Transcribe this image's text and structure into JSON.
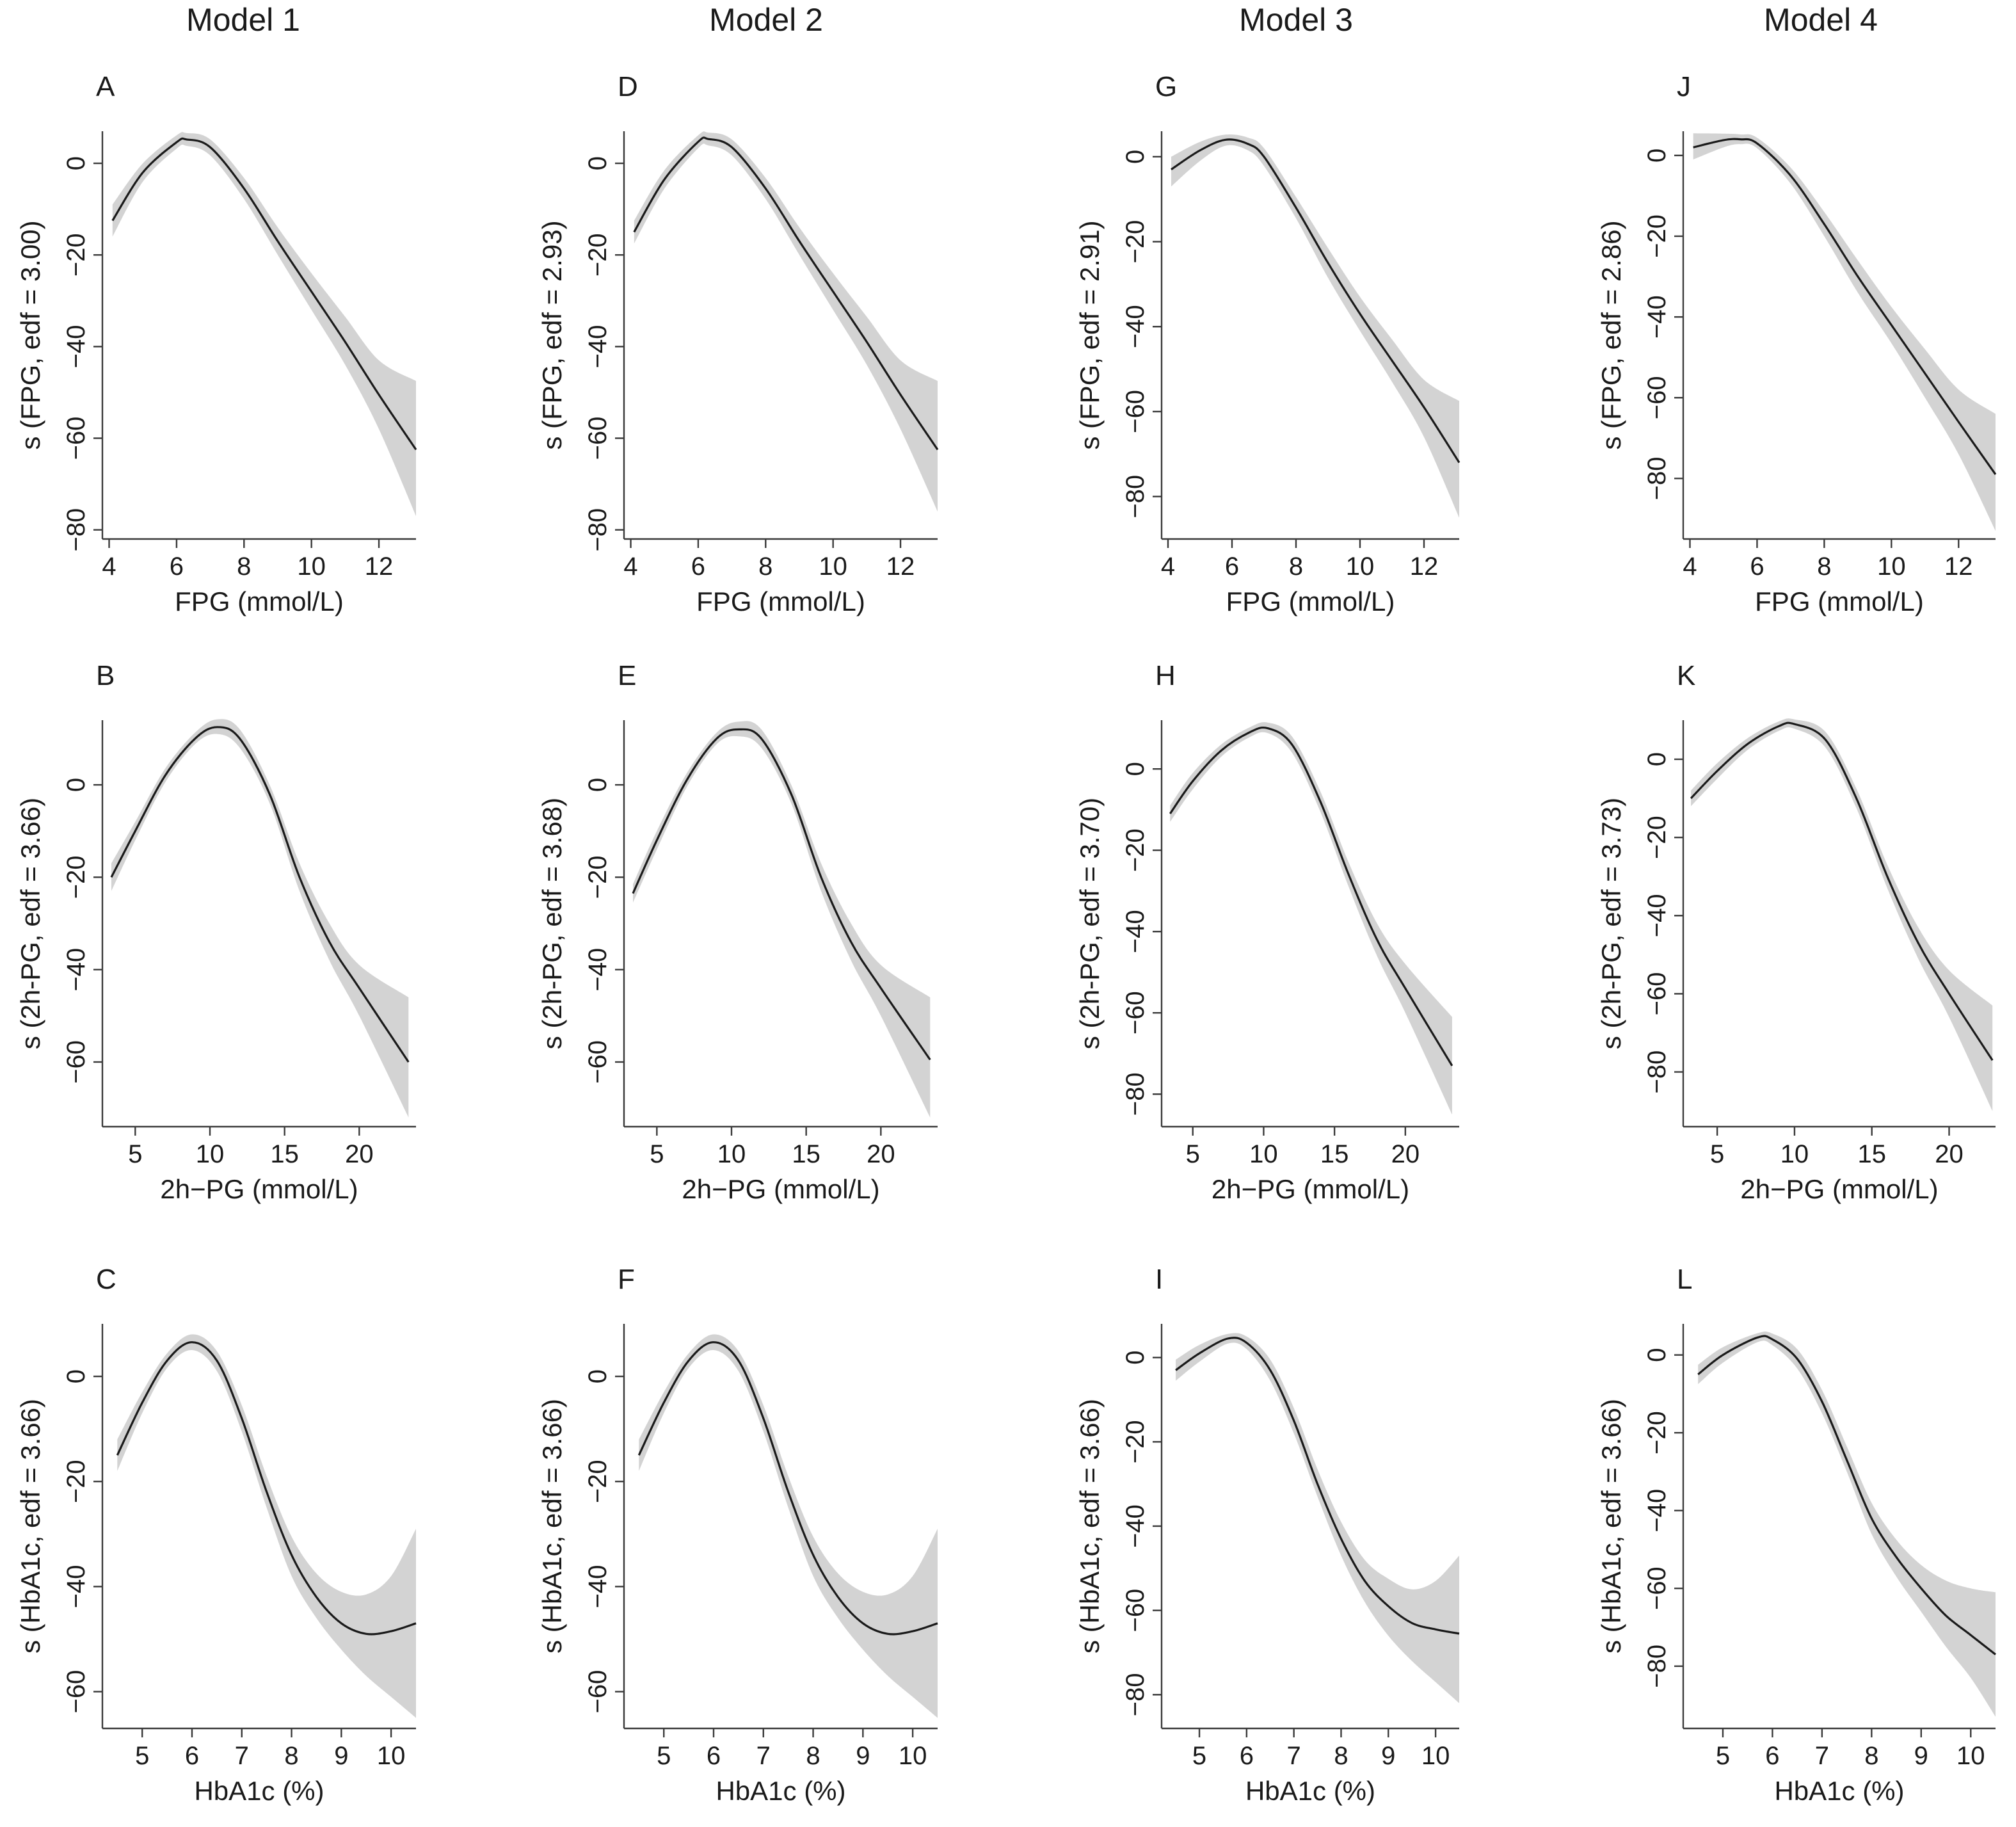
{
  "figure": {
    "column_titles": [
      "Model  1",
      "Model  2",
      "Model  3",
      "Model  4"
    ],
    "colors": {
      "band": "#d3d3d3",
      "line": "#1a1a1a",
      "axis": "#3a3a3a"
    }
  },
  "chart_data": [
    {
      "panel": "A",
      "type": "line",
      "model": "Model 1",
      "xlabel": "FPG (mmol/L)",
      "ylabel": "s (FPG, edf = 3.00)",
      "xticks": [
        4,
        6,
        8,
        10,
        12
      ],
      "yticks": [
        0,
        -20,
        -40,
        -60,
        -80
      ],
      "xlim": [
        3.8,
        13.1
      ],
      "ylim": [
        -82,
        7
      ],
      "series": {
        "x": [
          4.1,
          5,
          6,
          6.3,
          7,
          8,
          9,
          10,
          11,
          12,
          13.1
        ],
        "y": [
          -12.5,
          -2,
          4.6,
          5.2,
          3.5,
          -5.5,
          -17,
          -28,
          -39,
          -50.5,
          -62.5
        ],
        "lower": [
          -16,
          -4,
          3.2,
          3.8,
          1.7,
          -7.8,
          -20,
          -32,
          -44,
          -58,
          -77
        ],
        "upper": [
          -9,
          0,
          6.1,
          6.6,
          5.2,
          -3.2,
          -14,
          -24,
          -33.5,
          -43,
          -47.5
        ]
      }
    },
    {
      "panel": "B",
      "type": "line",
      "model": "Model 1",
      "xlabel": "2h−PG (mmol/L)",
      "ylabel": "s (2h-PG, edf = 3.66)",
      "xticks": [
        5,
        10,
        15,
        20
      ],
      "yticks": [
        0,
        -20,
        -40,
        -60
      ],
      "xlim": [
        2.8,
        23.8
      ],
      "ylim": [
        -74,
        14
      ],
      "series": {
        "x": [
          3.4,
          5,
          7,
          9,
          10.5,
          12,
          14,
          16,
          18,
          20,
          23.3
        ],
        "y": [
          -20,
          -10,
          2,
          10,
          12.5,
          10,
          -2,
          -20,
          -34,
          -44,
          -60
        ],
        "lower": [
          -23,
          -12,
          0.5,
          8.8,
          11,
          8,
          -4,
          -23,
          -38,
          -50,
          -72
        ],
        "upper": [
          -17,
          -8,
          3.5,
          11.3,
          14.2,
          12,
          0,
          -17,
          -30,
          -39,
          -46
        ]
      }
    },
    {
      "panel": "C",
      "type": "line",
      "model": "Model 1",
      "xlabel": "HbA1c (%)",
      "ylabel": "s (HbA1c, edf = 3.66)",
      "xticks": [
        5,
        6,
        7,
        8,
        9,
        10
      ],
      "yticks": [
        0,
        -20,
        -40,
        -60
      ],
      "xlim": [
        4.2,
        10.5
      ],
      "ylim": [
        -67,
        10
      ],
      "series": {
        "x": [
          4.5,
          5,
          5.5,
          6,
          6.5,
          7,
          7.5,
          8,
          8.5,
          9,
          9.5,
          10,
          10.5
        ],
        "y": [
          -15,
          -5,
          3,
          6.5,
          3,
          -8,
          -22,
          -34,
          -42,
          -47,
          -49,
          -48.5,
          -47
        ],
        "lower": [
          -18,
          -7,
          1.6,
          5,
          1,
          -10.5,
          -25,
          -38,
          -46,
          -52,
          -57,
          -61,
          -65
        ],
        "upper": [
          -12,
          -3,
          4.4,
          8,
          4.8,
          -5.5,
          -19,
          -30.5,
          -37.5,
          -41,
          -41.5,
          -38,
          -29
        ]
      }
    },
    {
      "panel": "D",
      "type": "line",
      "model": "Model 2",
      "xlabel": "FPG (mmol/L)",
      "ylabel": "s (FPG, edf = 2.93)",
      "xticks": [
        4,
        6,
        8,
        10,
        12
      ],
      "yticks": [
        0,
        -20,
        -40,
        -60,
        -80
      ],
      "xlim": [
        3.8,
        13.1
      ],
      "ylim": [
        -82,
        7
      ],
      "series": {
        "x": [
          4.1,
          5,
          6,
          6.3,
          7,
          8,
          9,
          10,
          11,
          12,
          13.1
        ],
        "y": [
          -15,
          -3.5,
          4.7,
          5.3,
          3.5,
          -5.5,
          -17,
          -28,
          -39,
          -50.5,
          -62.5
        ],
        "lower": [
          -17.5,
          -5.5,
          3.3,
          3.9,
          1.7,
          -7.8,
          -20,
          -32,
          -44,
          -58,
          -76
        ],
        "upper": [
          -12.5,
          -1.5,
          6.1,
          6.7,
          5.2,
          -3.2,
          -14,
          -24,
          -33.5,
          -43,
          -47.5
        ]
      }
    },
    {
      "panel": "E",
      "type": "line",
      "model": "Model 2",
      "xlabel": "2h−PG (mmol/L)",
      "ylabel": "s (2h-PG, edf = 3.68)",
      "xticks": [
        5,
        10,
        15,
        20
      ],
      "yticks": [
        0,
        -20,
        -40,
        -60
      ],
      "xlim": [
        2.8,
        23.8
      ],
      "ylim": [
        -74,
        14
      ],
      "series": {
        "x": [
          3.4,
          5,
          7,
          9,
          10.5,
          12,
          14,
          16,
          18,
          20,
          23.3
        ],
        "y": [
          -23.5,
          -12,
          1,
          10,
          12,
          10,
          -2,
          -20,
          -34,
          -44,
          -59.5
        ],
        "lower": [
          -25.5,
          -14,
          -0.5,
          8.8,
          10.5,
          8,
          -4,
          -23,
          -38,
          -50,
          -72
        ],
        "upper": [
          -21.5,
          -10,
          2.5,
          11.3,
          13.7,
          12,
          0,
          -17,
          -30,
          -39,
          -46
        ]
      }
    },
    {
      "panel": "F",
      "type": "line",
      "model": "Model 2",
      "xlabel": "HbA1c (%)",
      "ylabel": "s (HbA1c, edf = 3.66)",
      "xticks": [
        5,
        6,
        7,
        8,
        9,
        10
      ],
      "yticks": [
        0,
        -20,
        -40,
        -60
      ],
      "xlim": [
        4.2,
        10.5
      ],
      "ylim": [
        -67,
        10
      ],
      "series": {
        "x": [
          4.5,
          5,
          5.5,
          6,
          6.5,
          7,
          7.5,
          8,
          8.5,
          9,
          9.5,
          10,
          10.5
        ],
        "y": [
          -15,
          -5,
          3,
          6.5,
          3,
          -8,
          -22,
          -34,
          -42,
          -47,
          -49,
          -48.5,
          -47
        ],
        "lower": [
          -18,
          -7,
          1.6,
          5,
          1,
          -10.5,
          -25,
          -38,
          -46,
          -52,
          -57,
          -61,
          -65
        ],
        "upper": [
          -12,
          -3,
          4.4,
          8,
          4.8,
          -5.5,
          -19,
          -30.5,
          -37.5,
          -41,
          -41.5,
          -38,
          -29
        ]
      }
    },
    {
      "panel": "G",
      "type": "line",
      "model": "Model 3",
      "xlabel": "FPG (mmol/L)",
      "ylabel": "s (FPG, edf = 2.91)",
      "xticks": [
        4,
        6,
        8,
        10,
        12
      ],
      "yticks": [
        0,
        -20,
        -40,
        -60,
        -80
      ],
      "xlim": [
        3.8,
        13.1
      ],
      "ylim": [
        -90,
        6
      ],
      "series": {
        "x": [
          4.1,
          5,
          5.8,
          6.5,
          7,
          8,
          9,
          10,
          11,
          12,
          13.1
        ],
        "y": [
          -3,
          1.5,
          4,
          3,
          0,
          -12,
          -25,
          -37,
          -48,
          -59,
          -72
        ],
        "lower": [
          -7,
          -1,
          2.6,
          1.5,
          -2.2,
          -14.5,
          -28.5,
          -41,
          -53,
          -66,
          -85
        ],
        "upper": [
          0,
          3.5,
          5.2,
          4.5,
          2,
          -9.5,
          -21.5,
          -33,
          -43,
          -52.5,
          -57.5
        ]
      }
    },
    {
      "panel": "H",
      "type": "line",
      "model": "Model 3",
      "xlabel": "2h−PG (mmol/L)",
      "ylabel": "s (2h-PG, edf = 3.70)",
      "xticks": [
        5,
        10,
        15,
        20
      ],
      "yticks": [
        0,
        -20,
        -40,
        -60,
        -80
      ],
      "xlim": [
        2.8,
        23.8
      ],
      "ylim": [
        -88,
        12
      ],
      "series": {
        "x": [
          3.4,
          5,
          7,
          9,
          10.3,
          12,
          14,
          16,
          18,
          20,
          23.3
        ],
        "y": [
          -11,
          -3,
          4.5,
          9,
          10,
          6,
          -8,
          -26,
          -42,
          -54,
          -73
        ],
        "lower": [
          -13,
          -5,
          3,
          7.8,
          8.8,
          4,
          -10.5,
          -29,
          -46,
          -60,
          -85
        ],
        "upper": [
          -9,
          -1,
          6,
          10.2,
          11.4,
          8,
          -5.5,
          -23,
          -38,
          -48,
          -61
        ]
      }
    },
    {
      "panel": "I",
      "type": "line",
      "model": "Model 3",
      "xlabel": "HbA1c (%)",
      "ylabel": "s (HbA1c, edf = 3.66)",
      "xticks": [
        5,
        6,
        7,
        8,
        9,
        10
      ],
      "yticks": [
        0,
        -20,
        -40,
        -60,
        -80
      ],
      "xlim": [
        4.2,
        10.5
      ],
      "ylim": [
        -88,
        8
      ],
      "series": {
        "x": [
          4.5,
          5,
          5.6,
          6,
          6.5,
          7,
          7.5,
          8,
          8.5,
          9,
          9.5,
          10,
          10.5
        ],
        "y": [
          -3,
          1,
          4.5,
          3.5,
          -3,
          -15,
          -30,
          -43,
          -53,
          -59,
          -63,
          -64.5,
          -65.5
        ],
        "lower": [
          -5.5,
          -1,
          3.3,
          2,
          -5.5,
          -18,
          -33,
          -47,
          -58,
          -66,
          -72,
          -77,
          -82
        ],
        "upper": [
          -0.5,
          3,
          5.6,
          5,
          -0.5,
          -12,
          -26.5,
          -39,
          -48,
          -52.5,
          -55,
          -53,
          -47
        ]
      }
    },
    {
      "panel": "J",
      "type": "line",
      "model": "Model 4",
      "xlabel": "FPG (mmol/L)",
      "ylabel": "s (FPG, edf = 2.86)",
      "xticks": [
        4,
        6,
        8,
        10,
        12
      ],
      "yticks": [
        0,
        -20,
        -40,
        -60,
        -80
      ],
      "xlim": [
        3.8,
        13.1
      ],
      "ylim": [
        -95,
        6
      ],
      "series": {
        "x": [
          4.1,
          5,
          5.5,
          6,
          7,
          8,
          9,
          10,
          11,
          12,
          13.1
        ],
        "y": [
          2,
          3.8,
          4,
          3,
          -5,
          -17,
          -30,
          -42,
          -54,
          -66,
          -79
        ],
        "lower": [
          -1,
          2,
          2.8,
          1.8,
          -7,
          -20,
          -34,
          -46.5,
          -60,
          -74,
          -93
        ],
        "upper": [
          5.5,
          5.4,
          5.2,
          4.4,
          -3,
          -14,
          -26,
          -37.5,
          -48,
          -58,
          -64
        ]
      }
    },
    {
      "panel": "K",
      "type": "line",
      "model": "Model 4",
      "xlabel": "2h−PG (mmol/L)",
      "ylabel": "s (2h-PG, edf = 3.73)",
      "xticks": [
        5,
        10,
        15,
        20
      ],
      "yticks": [
        0,
        -20,
        -40,
        -60,
        -80
      ],
      "xlim": [
        2.8,
        23
      ],
      "ylim": [
        -94,
        10
      ],
      "series": {
        "x": [
          3.3,
          5,
          7,
          9,
          10,
          12,
          14,
          16,
          18,
          20,
          22.8
        ],
        "y": [
          -10,
          -3,
          4,
          8.5,
          9,
          5,
          -10,
          -30,
          -47,
          -60,
          -77
        ],
        "lower": [
          -12,
          -5,
          2.5,
          7.3,
          7.8,
          3,
          -12.5,
          -33,
          -51,
          -66,
          -90
        ],
        "upper": [
          -8,
          -1,
          5.5,
          9.7,
          10.2,
          7,
          -7.5,
          -27,
          -43,
          -54,
          -63
        ]
      }
    },
    {
      "panel": "L",
      "type": "line",
      "model": "Model 4",
      "xlabel": "HbA1c (%)",
      "ylabel": "s (HbA1c, edf = 3.66)",
      "xticks": [
        5,
        6,
        7,
        8,
        9,
        10
      ],
      "yticks": [
        0,
        -20,
        -40,
        -60,
        -80
      ],
      "xlim": [
        4.2,
        10.5
      ],
      "ylim": [
        -96,
        8
      ],
      "series": {
        "x": [
          4.5,
          5,
          5.7,
          6,
          6.5,
          7,
          7.5,
          8,
          8.5,
          9,
          9.5,
          10,
          10.5
        ],
        "y": [
          -5,
          0,
          4.5,
          4,
          -1,
          -12,
          -27,
          -42,
          -52,
          -60,
          -67,
          -72,
          -77
        ],
        "lower": [
          -7.5,
          -2,
          3.3,
          2.5,
          -3.5,
          -15,
          -30,
          -46,
          -57,
          -66,
          -75,
          -83,
          -93
        ],
        "upper": [
          -2.5,
          2,
          5.6,
          5.5,
          1.5,
          -9,
          -23.5,
          -38,
          -47.5,
          -54,
          -58,
          -60,
          -61
        ]
      }
    }
  ]
}
